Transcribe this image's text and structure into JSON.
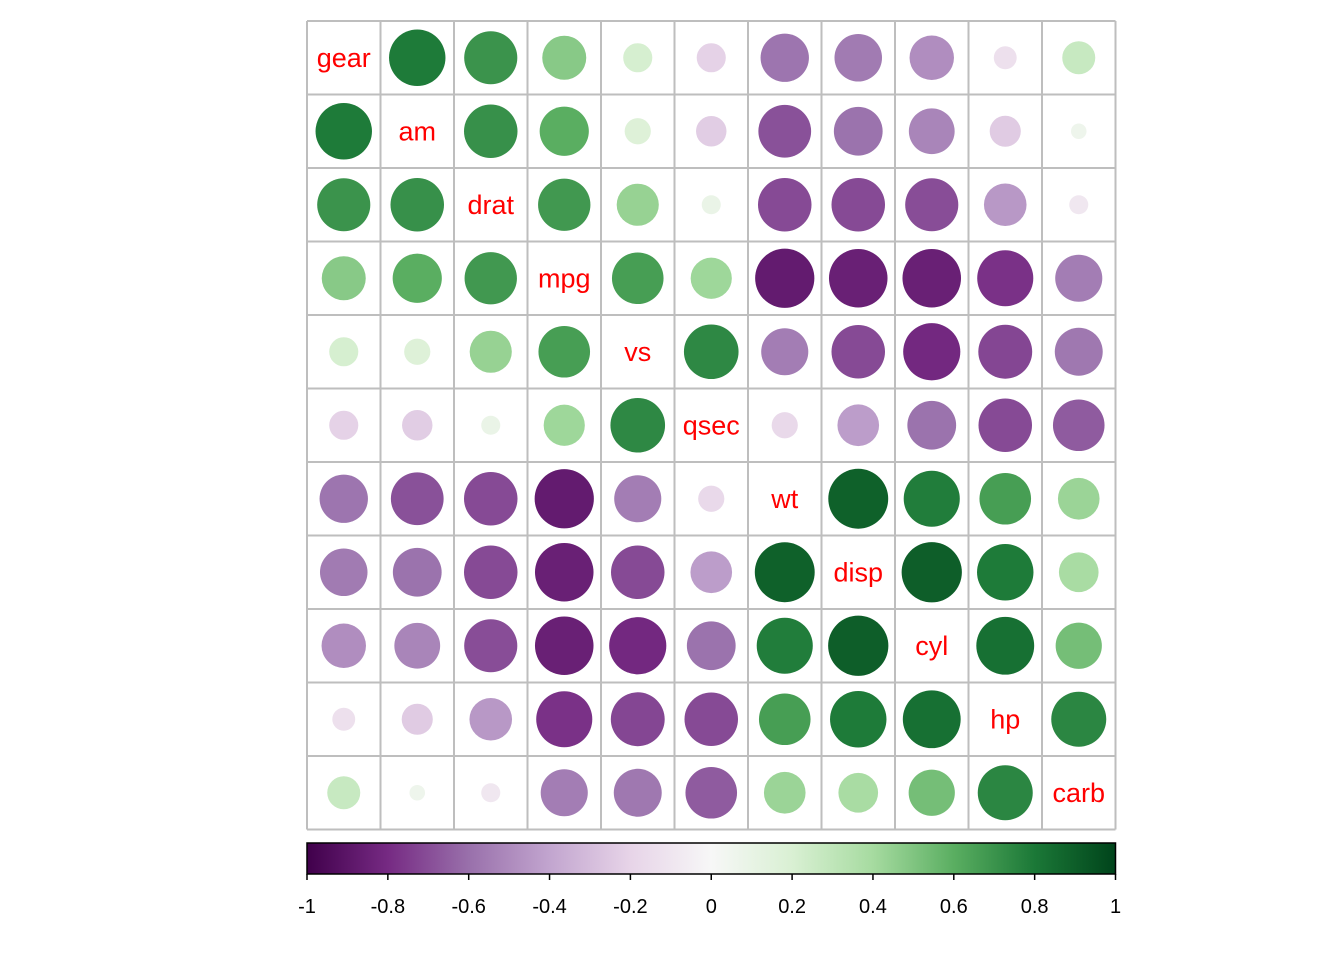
{
  "chart_data": {
    "type": "heatmap",
    "variables": [
      "gear",
      "am",
      "drat",
      "mpg",
      "vs",
      "qsec",
      "wt",
      "disp",
      "cyl",
      "hp",
      "carb"
    ],
    "matrix": [
      [
        1.0,
        0.79,
        0.7,
        0.48,
        0.21,
        -0.21,
        -0.58,
        -0.56,
        -0.49,
        -0.13,
        0.27
      ],
      [
        0.79,
        1.0,
        0.71,
        0.6,
        0.17,
        -0.23,
        -0.69,
        -0.59,
        -0.52,
        -0.24,
        0.06
      ],
      [
        0.7,
        0.71,
        1.0,
        0.68,
        0.44,
        0.09,
        -0.71,
        -0.71,
        -0.7,
        -0.45,
        -0.09
      ],
      [
        0.48,
        0.6,
        0.68,
        1.0,
        0.66,
        0.42,
        -0.87,
        -0.85,
        -0.85,
        -0.78,
        -0.55
      ],
      [
        0.21,
        0.17,
        0.44,
        0.66,
        1.0,
        0.74,
        -0.55,
        -0.71,
        -0.81,
        -0.72,
        -0.57
      ],
      [
        -0.21,
        -0.23,
        0.09,
        0.42,
        0.74,
        1.0,
        -0.17,
        -0.43,
        -0.59,
        -0.71,
        -0.66
      ],
      [
        -0.58,
        -0.69,
        -0.71,
        -0.87,
        -0.55,
        -0.17,
        1.0,
        0.89,
        0.78,
        0.66,
        0.43
      ],
      [
        -0.56,
        -0.59,
        -0.71,
        -0.85,
        -0.71,
        -0.43,
        0.89,
        1.0,
        0.9,
        0.79,
        0.39
      ],
      [
        -0.49,
        -0.52,
        -0.7,
        -0.85,
        -0.81,
        -0.59,
        0.78,
        0.9,
        1.0,
        0.83,
        0.53
      ],
      [
        -0.13,
        -0.24,
        -0.45,
        -0.78,
        -0.72,
        -0.71,
        0.66,
        0.79,
        0.83,
        1.0,
        0.75
      ],
      [
        0.27,
        0.06,
        -0.09,
        -0.55,
        -0.57,
        -0.66,
        0.43,
        0.39,
        0.53,
        0.75,
        1.0
      ]
    ],
    "colorbar": {
      "range": [
        -1,
        1
      ],
      "tick_values": [
        -1,
        -0.8,
        -0.6,
        -0.4,
        -0.2,
        0,
        0.2,
        0.4,
        0.6,
        0.8,
        1
      ],
      "tick_labels": [
        "-1",
        "-0.8",
        "-0.6",
        "-0.4",
        "-0.2",
        "0",
        "0.2",
        "0.4",
        "0.6",
        "0.8",
        "1"
      ],
      "colors": [
        "#40004b",
        "#762a83",
        "#9970ab",
        "#c2a5cf",
        "#e7d4e8",
        "#f7f7f7",
        "#d9f0d3",
        "#a6dba0",
        "#5aae61",
        "#1b7837",
        "#00441b"
      ]
    },
    "label_color": "#ff0000",
    "grid_color": "#bebebe",
    "title": "",
    "xlabel": "",
    "ylabel": ""
  }
}
